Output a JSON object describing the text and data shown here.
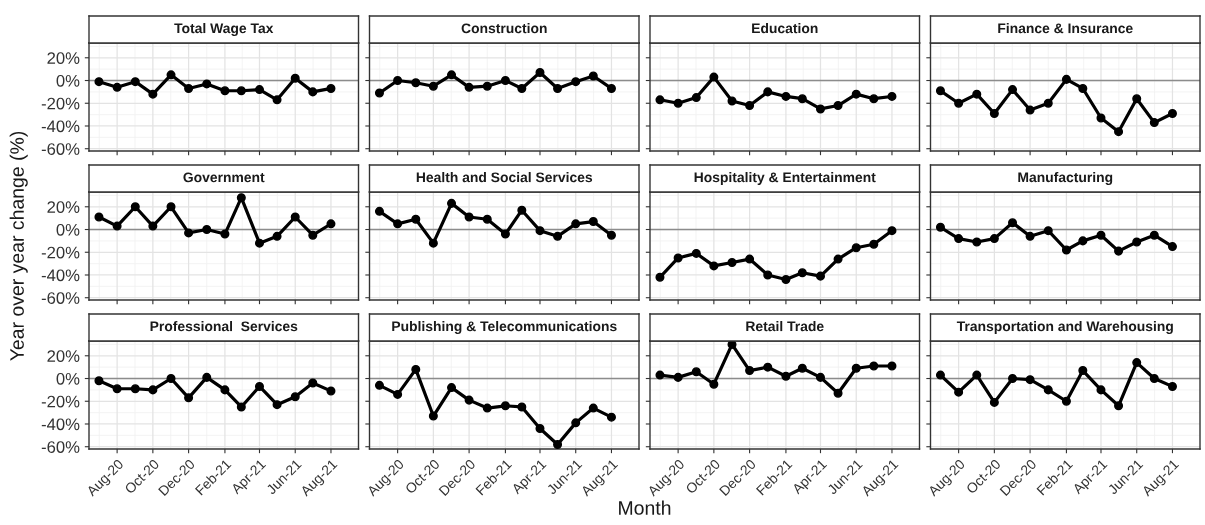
{
  "chart_data": [
    {
      "type": "line",
      "title": "Total Wage Tax",
      "tick_labels": "y",
      "x": [
        "2020-07",
        "2020-08",
        "2020-09",
        "2020-10",
        "2020-11",
        "2020-12",
        "2021-01",
        "2021-02",
        "2021-03",
        "2021-04",
        "2021-05",
        "2021-06",
        "2021-07",
        "2021-08"
      ],
      "xlim": [
        "2020-06-14",
        "2021-09-17"
      ],
      "xticks": [
        {
          "value": "2020-08",
          "label": null
        },
        {
          "value": "2020-10",
          "label": null
        },
        {
          "value": "2020-12",
          "label": null
        },
        {
          "value": "2021-02",
          "label": null
        },
        {
          "value": "2021-04",
          "label": null
        },
        {
          "value": "2021-06",
          "label": null
        },
        {
          "value": "2021-08",
          "label": null
        }
      ],
      "ylim": [
        -62,
        33
      ],
      "yticks": [
        {
          "value": -60,
          "label": "-60%"
        },
        {
          "value": -40,
          "label": "-40%"
        },
        {
          "value": -20,
          "label": "-20%"
        },
        {
          "value": 0,
          "label": "0%"
        },
        {
          "value": 20,
          "label": "20%"
        }
      ],
      "grid": true,
      "marker": "circle",
      "line_style": "solid",
      "ref_lines": [
        {
          "axis": "y",
          "value": 0,
          "color": "#8c8c8c"
        }
      ],
      "series": [
        {
          "color": "#000000",
          "values": [
            -1,
            -6,
            -1,
            -12,
            5,
            -7,
            -3,
            -9,
            -9,
            -8,
            -17,
            2,
            -10,
            -7
          ]
        }
      ]
    },
    {
      "type": "line",
      "title": "Construction",
      "tick_labels": false,
      "x": [
        "2020-07",
        "2020-08",
        "2020-09",
        "2020-10",
        "2020-11",
        "2020-12",
        "2021-01",
        "2021-02",
        "2021-03",
        "2021-04",
        "2021-05",
        "2021-06",
        "2021-07",
        "2021-08"
      ],
      "xlim": [
        "2020-06-14",
        "2021-09-17"
      ],
      "xticks": [
        {
          "value": "2020-08",
          "label": null
        },
        {
          "value": "2020-10",
          "label": null
        },
        {
          "value": "2020-12",
          "label": null
        },
        {
          "value": "2021-02",
          "label": null
        },
        {
          "value": "2021-04",
          "label": null
        },
        {
          "value": "2021-06",
          "label": null
        },
        {
          "value": "2021-08",
          "label": null
        }
      ],
      "ylim": [
        -62,
        33
      ],
      "yticks": [
        {
          "value": -60,
          "label": null
        },
        {
          "value": -40,
          "label": null
        },
        {
          "value": -20,
          "label": null
        },
        {
          "value": 0,
          "label": null
        },
        {
          "value": 20,
          "label": null
        }
      ],
      "grid": true,
      "marker": "circle",
      "line_style": "solid",
      "ref_lines": [
        {
          "axis": "y",
          "value": 0,
          "color": "#8c8c8c"
        }
      ],
      "series": [
        {
          "color": "#000000",
          "values": [
            -11,
            0,
            -2,
            -5,
            5,
            -6,
            -5,
            0,
            -7,
            7,
            -7,
            -1,
            4,
            -7
          ]
        }
      ]
    },
    {
      "type": "line",
      "title": "Education",
      "tick_labels": false,
      "x": [
        "2020-07",
        "2020-08",
        "2020-09",
        "2020-10",
        "2020-11",
        "2020-12",
        "2021-01",
        "2021-02",
        "2021-03",
        "2021-04",
        "2021-05",
        "2021-06",
        "2021-07",
        "2021-08"
      ],
      "xlim": [
        "2020-06-14",
        "2021-09-17"
      ],
      "xticks": [
        {
          "value": "2020-08",
          "label": null
        },
        {
          "value": "2020-10",
          "label": null
        },
        {
          "value": "2020-12",
          "label": null
        },
        {
          "value": "2021-02",
          "label": null
        },
        {
          "value": "2021-04",
          "label": null
        },
        {
          "value": "2021-06",
          "label": null
        },
        {
          "value": "2021-08",
          "label": null
        }
      ],
      "ylim": [
        -62,
        33
      ],
      "yticks": [
        {
          "value": -60,
          "label": null
        },
        {
          "value": -40,
          "label": null
        },
        {
          "value": -20,
          "label": null
        },
        {
          "value": 0,
          "label": null
        },
        {
          "value": 20,
          "label": null
        }
      ],
      "grid": true,
      "marker": "circle",
      "line_style": "solid",
      "ref_lines": [
        {
          "axis": "y",
          "value": 0,
          "color": "#8c8c8c"
        }
      ],
      "series": [
        {
          "color": "#000000",
          "values": [
            -17,
            -20,
            -15,
            3,
            -18,
            -22,
            -10,
            -14,
            -16,
            -25,
            -22,
            -12,
            -16,
            -14
          ]
        }
      ]
    },
    {
      "type": "line",
      "title": "Finance & Insurance",
      "tick_labels": false,
      "x": [
        "2020-07",
        "2020-08",
        "2020-09",
        "2020-10",
        "2020-11",
        "2020-12",
        "2021-01",
        "2021-02",
        "2021-03",
        "2021-04",
        "2021-05",
        "2021-06",
        "2021-07",
        "2021-08"
      ],
      "xlim": [
        "2020-06-14",
        "2021-09-17"
      ],
      "xticks": [
        {
          "value": "2020-08",
          "label": null
        },
        {
          "value": "2020-10",
          "label": null
        },
        {
          "value": "2020-12",
          "label": null
        },
        {
          "value": "2021-02",
          "label": null
        },
        {
          "value": "2021-04",
          "label": null
        },
        {
          "value": "2021-06",
          "label": null
        },
        {
          "value": "2021-08",
          "label": null
        }
      ],
      "ylim": [
        -62,
        33
      ],
      "yticks": [
        {
          "value": -60,
          "label": null
        },
        {
          "value": -40,
          "label": null
        },
        {
          "value": -20,
          "label": null
        },
        {
          "value": 0,
          "label": null
        },
        {
          "value": 20,
          "label": null
        }
      ],
      "grid": true,
      "marker": "circle",
      "line_style": "solid",
      "ref_lines": [
        {
          "axis": "y",
          "value": 0,
          "color": "#8c8c8c"
        }
      ],
      "series": [
        {
          "color": "#000000",
          "values": [
            -9,
            -20,
            -12,
            -29,
            -8,
            -26,
            -20,
            1,
            -7,
            -33,
            -45,
            -16,
            -37,
            -29
          ]
        }
      ]
    },
    {
      "type": "line",
      "title": "Government",
      "tick_labels": "y",
      "ylabel": "Year over year change (%)",
      "x": [
        "2020-07",
        "2020-08",
        "2020-09",
        "2020-10",
        "2020-11",
        "2020-12",
        "2021-01",
        "2021-02",
        "2021-03",
        "2021-04",
        "2021-05",
        "2021-06",
        "2021-07",
        "2021-08"
      ],
      "xlim": [
        "2020-06-14",
        "2021-09-17"
      ],
      "xticks": [
        {
          "value": "2020-08",
          "label": null
        },
        {
          "value": "2020-10",
          "label": null
        },
        {
          "value": "2020-12",
          "label": null
        },
        {
          "value": "2021-02",
          "label": null
        },
        {
          "value": "2021-04",
          "label": null
        },
        {
          "value": "2021-06",
          "label": null
        },
        {
          "value": "2021-08",
          "label": null
        }
      ],
      "ylim": [
        -62,
        33
      ],
      "yticks": [
        {
          "value": -60,
          "label": "-60%"
        },
        {
          "value": -40,
          "label": "-40%"
        },
        {
          "value": -20,
          "label": "-20%"
        },
        {
          "value": 0,
          "label": "0%"
        },
        {
          "value": 20,
          "label": "20%"
        }
      ],
      "grid": true,
      "marker": "circle",
      "line_style": "solid",
      "ref_lines": [
        {
          "axis": "y",
          "value": 0,
          "color": "#8c8c8c"
        }
      ],
      "series": [
        {
          "color": "#000000",
          "values": [
            11,
            3,
            20,
            3,
            20,
            -3,
            0,
            -4,
            28,
            -12,
            -6,
            11,
            -5,
            5
          ]
        }
      ]
    },
    {
      "type": "line",
      "title": "Health and Social Services",
      "tick_labels": false,
      "x": [
        "2020-07",
        "2020-08",
        "2020-09",
        "2020-10",
        "2020-11",
        "2020-12",
        "2021-01",
        "2021-02",
        "2021-03",
        "2021-04",
        "2021-05",
        "2021-06",
        "2021-07",
        "2021-08"
      ],
      "xlim": [
        "2020-06-14",
        "2021-09-17"
      ],
      "xticks": [
        {
          "value": "2020-08",
          "label": null
        },
        {
          "value": "2020-10",
          "label": null
        },
        {
          "value": "2020-12",
          "label": null
        },
        {
          "value": "2021-02",
          "label": null
        },
        {
          "value": "2021-04",
          "label": null
        },
        {
          "value": "2021-06",
          "label": null
        },
        {
          "value": "2021-08",
          "label": null
        }
      ],
      "ylim": [
        -62,
        33
      ],
      "yticks": [
        {
          "value": -60,
          "label": null
        },
        {
          "value": -40,
          "label": null
        },
        {
          "value": -20,
          "label": null
        },
        {
          "value": 0,
          "label": null
        },
        {
          "value": 20,
          "label": null
        }
      ],
      "grid": true,
      "marker": "circle",
      "line_style": "solid",
      "ref_lines": [
        {
          "axis": "y",
          "value": 0,
          "color": "#8c8c8c"
        }
      ],
      "series": [
        {
          "color": "#000000",
          "values": [
            16,
            5,
            9,
            -12,
            23,
            11,
            9,
            -4,
            17,
            -1,
            -6,
            5,
            7,
            -5
          ]
        }
      ]
    },
    {
      "type": "line",
      "title": "Hospitality & Entertainment",
      "tick_labels": false,
      "x": [
        "2020-07",
        "2020-08",
        "2020-09",
        "2020-10",
        "2020-11",
        "2020-12",
        "2021-01",
        "2021-02",
        "2021-03",
        "2021-04",
        "2021-05",
        "2021-06",
        "2021-07",
        "2021-08"
      ],
      "xlim": [
        "2020-06-14",
        "2021-09-17"
      ],
      "xticks": [
        {
          "value": "2020-08",
          "label": null
        },
        {
          "value": "2020-10",
          "label": null
        },
        {
          "value": "2020-12",
          "label": null
        },
        {
          "value": "2021-02",
          "label": null
        },
        {
          "value": "2021-04",
          "label": null
        },
        {
          "value": "2021-06",
          "label": null
        },
        {
          "value": "2021-08",
          "label": null
        }
      ],
      "ylim": [
        -62,
        33
      ],
      "yticks": [
        {
          "value": -60,
          "label": null
        },
        {
          "value": -40,
          "label": null
        },
        {
          "value": -20,
          "label": null
        },
        {
          "value": 0,
          "label": null
        },
        {
          "value": 20,
          "label": null
        }
      ],
      "grid": true,
      "marker": "circle",
      "line_style": "solid",
      "ref_lines": [
        {
          "axis": "y",
          "value": 0,
          "color": "#8c8c8c"
        }
      ],
      "series": [
        {
          "color": "#000000",
          "values": [
            -42,
            -25,
            -21,
            -32,
            -29,
            -26,
            -40,
            -44,
            -38,
            -41,
            -26,
            -16,
            -13,
            -1
          ]
        }
      ]
    },
    {
      "type": "line",
      "title": "Manufacturing",
      "tick_labels": false,
      "x": [
        "2020-07",
        "2020-08",
        "2020-09",
        "2020-10",
        "2020-11",
        "2020-12",
        "2021-01",
        "2021-02",
        "2021-03",
        "2021-04",
        "2021-05",
        "2021-06",
        "2021-07",
        "2021-08"
      ],
      "xlim": [
        "2020-06-14",
        "2021-09-17"
      ],
      "xticks": [
        {
          "value": "2020-08",
          "label": null
        },
        {
          "value": "2020-10",
          "label": null
        },
        {
          "value": "2020-12",
          "label": null
        },
        {
          "value": "2021-02",
          "label": null
        },
        {
          "value": "2021-04",
          "label": null
        },
        {
          "value": "2021-06",
          "label": null
        },
        {
          "value": "2021-08",
          "label": null
        }
      ],
      "ylim": [
        -62,
        33
      ],
      "yticks": [
        {
          "value": -60,
          "label": null
        },
        {
          "value": -40,
          "label": null
        },
        {
          "value": -20,
          "label": null
        },
        {
          "value": 0,
          "label": null
        },
        {
          "value": 20,
          "label": null
        }
      ],
      "grid": true,
      "marker": "circle",
      "line_style": "solid",
      "ref_lines": [
        {
          "axis": "y",
          "value": 0,
          "color": "#8c8c8c"
        }
      ],
      "series": [
        {
          "color": "#000000",
          "values": [
            2,
            -8,
            -11,
            -8,
            6,
            -6,
            -1,
            -18,
            -10,
            -5,
            -19,
            -11,
            -5,
            -15
          ]
        }
      ]
    },
    {
      "type": "line",
      "title": "Professional  Services",
      "x": [
        "2020-07",
        "2020-08",
        "2020-09",
        "2020-10",
        "2020-11",
        "2020-12",
        "2021-01",
        "2021-02",
        "2021-03",
        "2021-04",
        "2021-05",
        "2021-06",
        "2021-07",
        "2021-08"
      ],
      "xlim": [
        "2020-06-14",
        "2021-09-17"
      ],
      "xticks": [
        {
          "value": "2020-08",
          "label": "Aug-20"
        },
        {
          "value": "2020-10",
          "label": "Oct-20"
        },
        {
          "value": "2020-12",
          "label": "Dec-20"
        },
        {
          "value": "2021-02",
          "label": "Feb-21"
        },
        {
          "value": "2021-04",
          "label": "Apr-21"
        },
        {
          "value": "2021-06",
          "label": "Jun-21"
        },
        {
          "value": "2021-08",
          "label": "Aug-21"
        }
      ],
      "ylim": [
        -62,
        33
      ],
      "yticks": [
        {
          "value": -60,
          "label": "-60%"
        },
        {
          "value": -40,
          "label": "-40%"
        },
        {
          "value": -20,
          "label": "-20%"
        },
        {
          "value": 0,
          "label": "0%"
        },
        {
          "value": 20,
          "label": "20%"
        }
      ],
      "grid": true,
      "marker": "circle",
      "line_style": "solid",
      "ref_lines": [
        {
          "axis": "y",
          "value": 0,
          "color": "#8c8c8c"
        }
      ],
      "series": [
        {
          "color": "#000000",
          "values": [
            -2,
            -9,
            -9,
            -10,
            0,
            -17,
            1,
            -10,
            -25,
            -7,
            -23,
            -16,
            -4,
            -11
          ]
        }
      ]
    },
    {
      "type": "line",
      "title": "Publishing & Telecommunications",
      "tick_labels": "x",
      "xlabel": "Month",
      "x": [
        "2020-07",
        "2020-08",
        "2020-09",
        "2020-10",
        "2020-11",
        "2020-12",
        "2021-01",
        "2021-02",
        "2021-03",
        "2021-04",
        "2021-05",
        "2021-06",
        "2021-07",
        "2021-08"
      ],
      "xlim": [
        "2020-06-14",
        "2021-09-17"
      ],
      "xticks": [
        {
          "value": "2020-08",
          "label": "Aug-20"
        },
        {
          "value": "2020-10",
          "label": "Oct-20"
        },
        {
          "value": "2020-12",
          "label": "Dec-20"
        },
        {
          "value": "2021-02",
          "label": "Feb-21"
        },
        {
          "value": "2021-04",
          "label": "Apr-21"
        },
        {
          "value": "2021-06",
          "label": "Jun-21"
        },
        {
          "value": "2021-08",
          "label": "Aug-21"
        }
      ],
      "ylim": [
        -62,
        33
      ],
      "yticks": [
        {
          "value": -60,
          "label": null
        },
        {
          "value": -40,
          "label": null
        },
        {
          "value": -20,
          "label": null
        },
        {
          "value": 0,
          "label": null
        },
        {
          "value": 20,
          "label": null
        }
      ],
      "grid": true,
      "marker": "circle",
      "line_style": "solid",
      "ref_lines": [
        {
          "axis": "y",
          "value": 0,
          "color": "#8c8c8c"
        }
      ],
      "series": [
        {
          "color": "#000000",
          "values": [
            -6,
            -14,
            8,
            -33,
            -8,
            -19,
            -26,
            -24,
            -25,
            -44,
            -58,
            -39,
            -26,
            -34
          ]
        }
      ]
    },
    {
      "type": "line",
      "title": "Retail Trade",
      "tick_labels": "x",
      "x": [
        "2020-07",
        "2020-08",
        "2020-09",
        "2020-10",
        "2020-11",
        "2020-12",
        "2021-01",
        "2021-02",
        "2021-03",
        "2021-04",
        "2021-05",
        "2021-06",
        "2021-07",
        "2021-08"
      ],
      "xlim": [
        "2020-06-14",
        "2021-09-17"
      ],
      "xticks": [
        {
          "value": "2020-08",
          "label": "Aug-20"
        },
        {
          "value": "2020-10",
          "label": "Oct-20"
        },
        {
          "value": "2020-12",
          "label": "Dec-20"
        },
        {
          "value": "2021-02",
          "label": "Feb-21"
        },
        {
          "value": "2021-04",
          "label": "Apr-21"
        },
        {
          "value": "2021-06",
          "label": "Jun-21"
        },
        {
          "value": "2021-08",
          "label": "Aug-21"
        }
      ],
      "ylim": [
        -62,
        33
      ],
      "yticks": [
        {
          "value": -60,
          "label": null
        },
        {
          "value": -40,
          "label": null
        },
        {
          "value": -20,
          "label": null
        },
        {
          "value": 0,
          "label": null
        },
        {
          "value": 20,
          "label": null
        }
      ],
      "grid": true,
      "marker": "circle",
      "line_style": "solid",
      "ref_lines": [
        {
          "axis": "y",
          "value": 0,
          "color": "#8c8c8c"
        }
      ],
      "series": [
        {
          "color": "#000000",
          "values": [
            3,
            1,
            6,
            -5,
            30,
            7,
            10,
            2,
            9,
            1,
            -13,
            9,
            11,
            11
          ]
        }
      ]
    },
    {
      "type": "line",
      "title": "Transportation and Warehousing",
      "tick_labels": "x",
      "x": [
        "2020-07",
        "2020-08",
        "2020-09",
        "2020-10",
        "2020-11",
        "2020-12",
        "2021-01",
        "2021-02",
        "2021-03",
        "2021-04",
        "2021-05",
        "2021-06",
        "2021-07",
        "2021-08"
      ],
      "xlim": [
        "2020-06-14",
        "2021-09-17"
      ],
      "xticks": [
        {
          "value": "2020-08",
          "label": "Aug-20"
        },
        {
          "value": "2020-10",
          "label": "Oct-20"
        },
        {
          "value": "2020-12",
          "label": "Dec-20"
        },
        {
          "value": "2021-02",
          "label": "Feb-21"
        },
        {
          "value": "2021-04",
          "label": "Apr-21"
        },
        {
          "value": "2021-06",
          "label": "Jun-21"
        },
        {
          "value": "2021-08",
          "label": "Aug-21"
        }
      ],
      "ylim": [
        -62,
        33
      ],
      "yticks": [
        {
          "value": -60,
          "label": null
        },
        {
          "value": -40,
          "label": null
        },
        {
          "value": -20,
          "label": null
        },
        {
          "value": 0,
          "label": null
        },
        {
          "value": 20,
          "label": null
        }
      ],
      "grid": true,
      "marker": "circle",
      "line_style": "solid",
      "ref_lines": [
        {
          "axis": "y",
          "value": 0,
          "color": "#8c8c8c"
        }
      ],
      "series": [
        {
          "color": "#000000",
          "values": [
            3,
            -12,
            3,
            -21,
            0,
            -1,
            -10,
            -20,
            7,
            -10,
            -24,
            14,
            0,
            -7
          ]
        }
      ]
    }
  ]
}
